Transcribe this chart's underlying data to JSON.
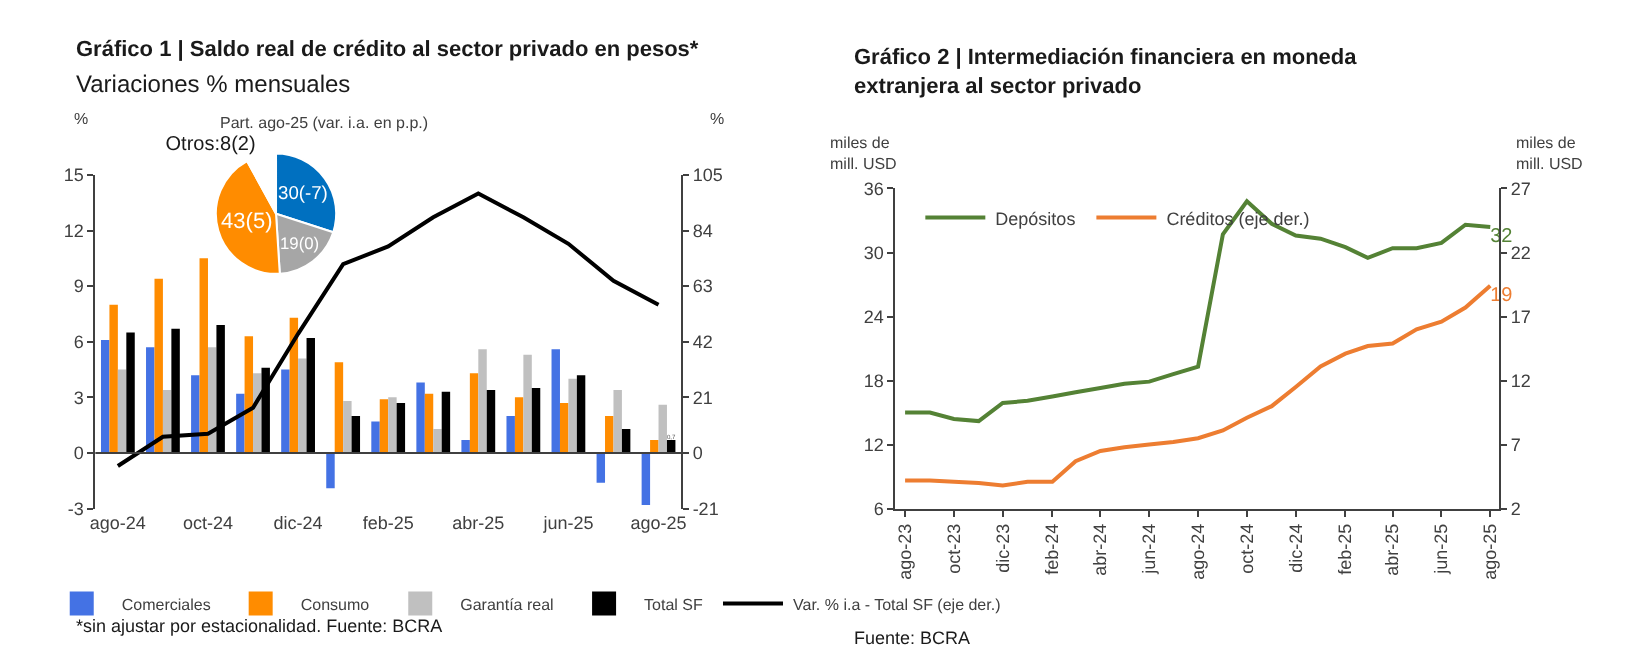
{
  "chart_data": [
    {
      "type": "bar",
      "title": "Gráfico 1 | Saldo real de crédito al sector privado en pesos*",
      "subtitle": "Variaciones % mensuales",
      "ylabel": "%",
      "y2label": "%",
      "categories": [
        "ago-24",
        null,
        "oct-24",
        null,
        "dic-24",
        null,
        "feb-25",
        null,
        "abr-25",
        null,
        "jun-25",
        null,
        "ago-25"
      ],
      "series": [
        {
          "name": "Comerciales",
          "color": "#4472e4",
          "values": [
            6.1,
            5.7,
            4.2,
            3.2,
            4.5,
            -1.9,
            1.7,
            3.8,
            0.7,
            2.0,
            5.6,
            -1.6,
            -2.8
          ]
        },
        {
          "name": "Consumo",
          "color": "#ff8c00",
          "values": [
            8.0,
            9.4,
            10.5,
            6.3,
            7.3,
            4.9,
            2.9,
            3.2,
            4.3,
            3.0,
            2.7,
            2.0,
            0.7
          ]
        },
        {
          "name": "Garantía real",
          "color": "#c0c0c0",
          "values": [
            4.5,
            3.4,
            5.7,
            4.3,
            5.1,
            2.8,
            3.0,
            1.3,
            5.6,
            5.3,
            4.0,
            3.4,
            2.6
          ]
        },
        {
          "name": "Total SF",
          "color": "#000000",
          "values": [
            6.5,
            6.7,
            6.9,
            4.6,
            6.2,
            2.0,
            2.7,
            3.3,
            3.4,
            3.5,
            4.2,
            1.3,
            0.7
          ],
          "value_labels": [
            null,
            null,
            null,
            null,
            null,
            null,
            null,
            null,
            null,
            null,
            null,
            null,
            "0,7"
          ]
        },
        {
          "name": "Var. % i.a - Total SF (eje der.)",
          "type": "line",
          "axis": "y2",
          "color": "#000000",
          "values": [
            -4.9,
            6.1,
            7.3,
            17.1,
            45,
            71.3,
            78,
            89,
            98,
            89,
            79,
            65,
            56
          ]
        }
      ],
      "ylim": [
        -3,
        15
      ],
      "yticks": [
        -3,
        0,
        3,
        6,
        9,
        12,
        15
      ],
      "y2lim": [
        -21,
        105
      ],
      "y2ticks": [
        -21,
        0,
        21,
        42,
        63,
        84,
        105
      ],
      "legend": "bottom",
      "ref_lines": [
        {
          "axis": "y",
          "value": 0,
          "color": "#404040"
        }
      ],
      "annotations": [
        "*sin ajustar por estacionalidad. Fuente: BCRA"
      ]
    },
    {
      "type": "pie",
      "title": "Part. ago-25 (var. i.a. en p.p.)",
      "categories": [
        null,
        null,
        null,
        null
      ],
      "values": [
        30,
        19,
        43,
        8
      ],
      "colors": [
        "#0070c0",
        "#a6a6a6",
        "#ff8c00",
        "#ffffff"
      ],
      "value_labels": [
        "30(-7)",
        "19(0)",
        "43(5)",
        "Otros:8(2)"
      ]
    },
    {
      "type": "line",
      "title": "Gráfico 2 | Intermediación financiera en moneda extranjera al sector privado",
      "ylabel": "miles de mill. USD",
      "y2label": "miles de mill. USD",
      "x": [
        "2023-08",
        "2023-09",
        "2023-10",
        "2023-11",
        "2023-12",
        "2024-01",
        "2024-02",
        "2024-03",
        "2024-04",
        "2024-05",
        "2024-06",
        "2024-07",
        "2024-08",
        "2024-09",
        "2024-10",
        "2024-11",
        "2024-12",
        "2025-01",
        "2025-02",
        "2025-03",
        "2025-04",
        "2025-05",
        "2025-06",
        "2025-07",
        "2025-08"
      ],
      "series": [
        {
          "name": "Depósitos",
          "color": "#548235",
          "values": [
            15.0,
            15.0,
            14.4,
            14.2,
            15.9,
            16.1,
            16.5,
            16.9,
            17.3,
            17.7,
            17.9,
            18.6,
            19.3,
            31.7,
            34.8,
            32.7,
            31.6,
            31.3,
            30.5,
            29.5,
            30.4,
            30.4,
            30.9,
            32.6,
            32.4
          ],
          "value_labels": [
            null,
            null,
            null,
            null,
            null,
            null,
            null,
            null,
            null,
            null,
            null,
            null,
            null,
            null,
            null,
            null,
            null,
            null,
            null,
            null,
            null,
            null,
            null,
            null,
            "32"
          ]
        },
        {
          "name": "Créditos (eje der.)",
          "axis": "y2",
          "color": "#ed7d31",
          "values": [
            4.2,
            4.2,
            4.1,
            4.0,
            3.8,
            4.1,
            4.1,
            5.7,
            6.5,
            6.8,
            7.0,
            7.2,
            7.5,
            8.1,
            9.1,
            10.0,
            11.5,
            13.1,
            14.1,
            14.7,
            14.9,
            16.0,
            16.6,
            17.7,
            19.4
          ],
          "value_labels": [
            null,
            null,
            null,
            null,
            null,
            null,
            null,
            null,
            null,
            null,
            null,
            null,
            null,
            null,
            null,
            null,
            null,
            null,
            null,
            null,
            null,
            null,
            null,
            null,
            "19"
          ]
        }
      ],
      "xlim": [
        "2023-07-20",
        "2025-08-12"
      ],
      "xticks": [
        {
          "value": "2023-08",
          "label": "ago-23"
        },
        {
          "value": "2023-10",
          "label": "oct-23"
        },
        {
          "value": "2023-12",
          "label": "dic-23"
        },
        {
          "value": "2024-02",
          "label": "feb-24"
        },
        {
          "value": "2024-04",
          "label": "abr-24"
        },
        {
          "value": "2024-06",
          "label": "jun-24"
        },
        {
          "value": "2024-08",
          "label": "ago-24"
        },
        {
          "value": "2024-10",
          "label": "oct-24"
        },
        {
          "value": "2024-12",
          "label": "dic-24"
        },
        {
          "value": "2025-02",
          "label": "feb-25"
        },
        {
          "value": "2025-04",
          "label": "abr-25"
        },
        {
          "value": "2025-06",
          "label": "jun-25"
        },
        {
          "value": "2025-08",
          "label": "ago-25"
        }
      ],
      "ylim": [
        6,
        36
      ],
      "yticks": [
        6,
        12,
        18,
        24,
        30,
        36
      ],
      "y2lim": [
        2,
        27
      ],
      "y2ticks": [
        2,
        7,
        12,
        17,
        22,
        27
      ],
      "legend": "top left",
      "annotations": [
        "Fuente: BCRA"
      ]
    }
  ]
}
